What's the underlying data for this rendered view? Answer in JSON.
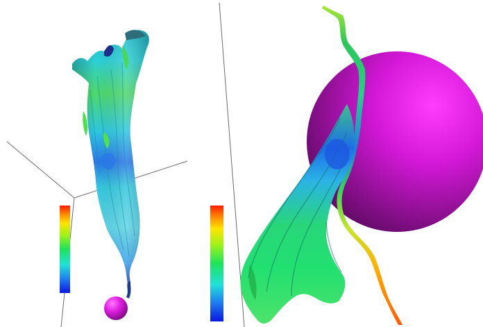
{
  "figure": {
    "panels": [
      {
        "name": "left-panel",
        "colorbar": "rainbow",
        "sphere_color": "#d316d6"
      },
      {
        "name": "right-panel",
        "colorbar": "rainbow",
        "sphere_color": "#c412c8"
      }
    ],
    "colors": {
      "background": "#ffffff",
      "axis_lines": "#6b6b6b",
      "colormap": [
        "#0a18e0",
        "#1f7cf0",
        "#21e2d8",
        "#1de35b",
        "#9ff21a",
        "#ffe400",
        "#ff8a00",
        "#ff1c00"
      ]
    },
    "icons": [
      "sphere-icon",
      "colorbar-icon",
      "ribbon-surface-icon"
    ]
  }
}
